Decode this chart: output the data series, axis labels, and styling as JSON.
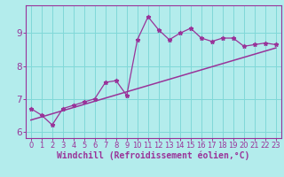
{
  "xlabel": "Windchill (Refroidissement éolien,°C)",
  "bg_color": "#b3ecec",
  "grid_color": "#80d8d8",
  "line_color": "#993399",
  "x_data": [
    0,
    1,
    2,
    3,
    4,
    5,
    6,
    7,
    8,
    9,
    10,
    11,
    12,
    13,
    14,
    15,
    16,
    17,
    18,
    19,
    20,
    21,
    22,
    23
  ],
  "y_data": [
    6.7,
    6.5,
    6.2,
    6.7,
    6.8,
    6.9,
    7.0,
    7.5,
    7.55,
    7.1,
    8.8,
    9.5,
    9.1,
    8.8,
    9.0,
    9.15,
    8.85,
    8.75,
    8.85,
    8.85,
    8.6,
    8.65,
    8.7,
    8.65
  ],
  "trend_x": [
    0,
    23
  ],
  "trend_y": [
    6.35,
    8.55
  ],
  "ylim": [
    5.8,
    9.85
  ],
  "xlim": [
    -0.5,
    23.5
  ],
  "yticks": [
    6,
    7,
    8,
    9
  ],
  "xticks": [
    0,
    1,
    2,
    3,
    4,
    5,
    6,
    7,
    8,
    9,
    10,
    11,
    12,
    13,
    14,
    15,
    16,
    17,
    18,
    19,
    20,
    21,
    22,
    23
  ],
  "tick_fontsize": 6.0,
  "xlabel_fontsize": 7.0,
  "ytick_fontsize": 7.5
}
